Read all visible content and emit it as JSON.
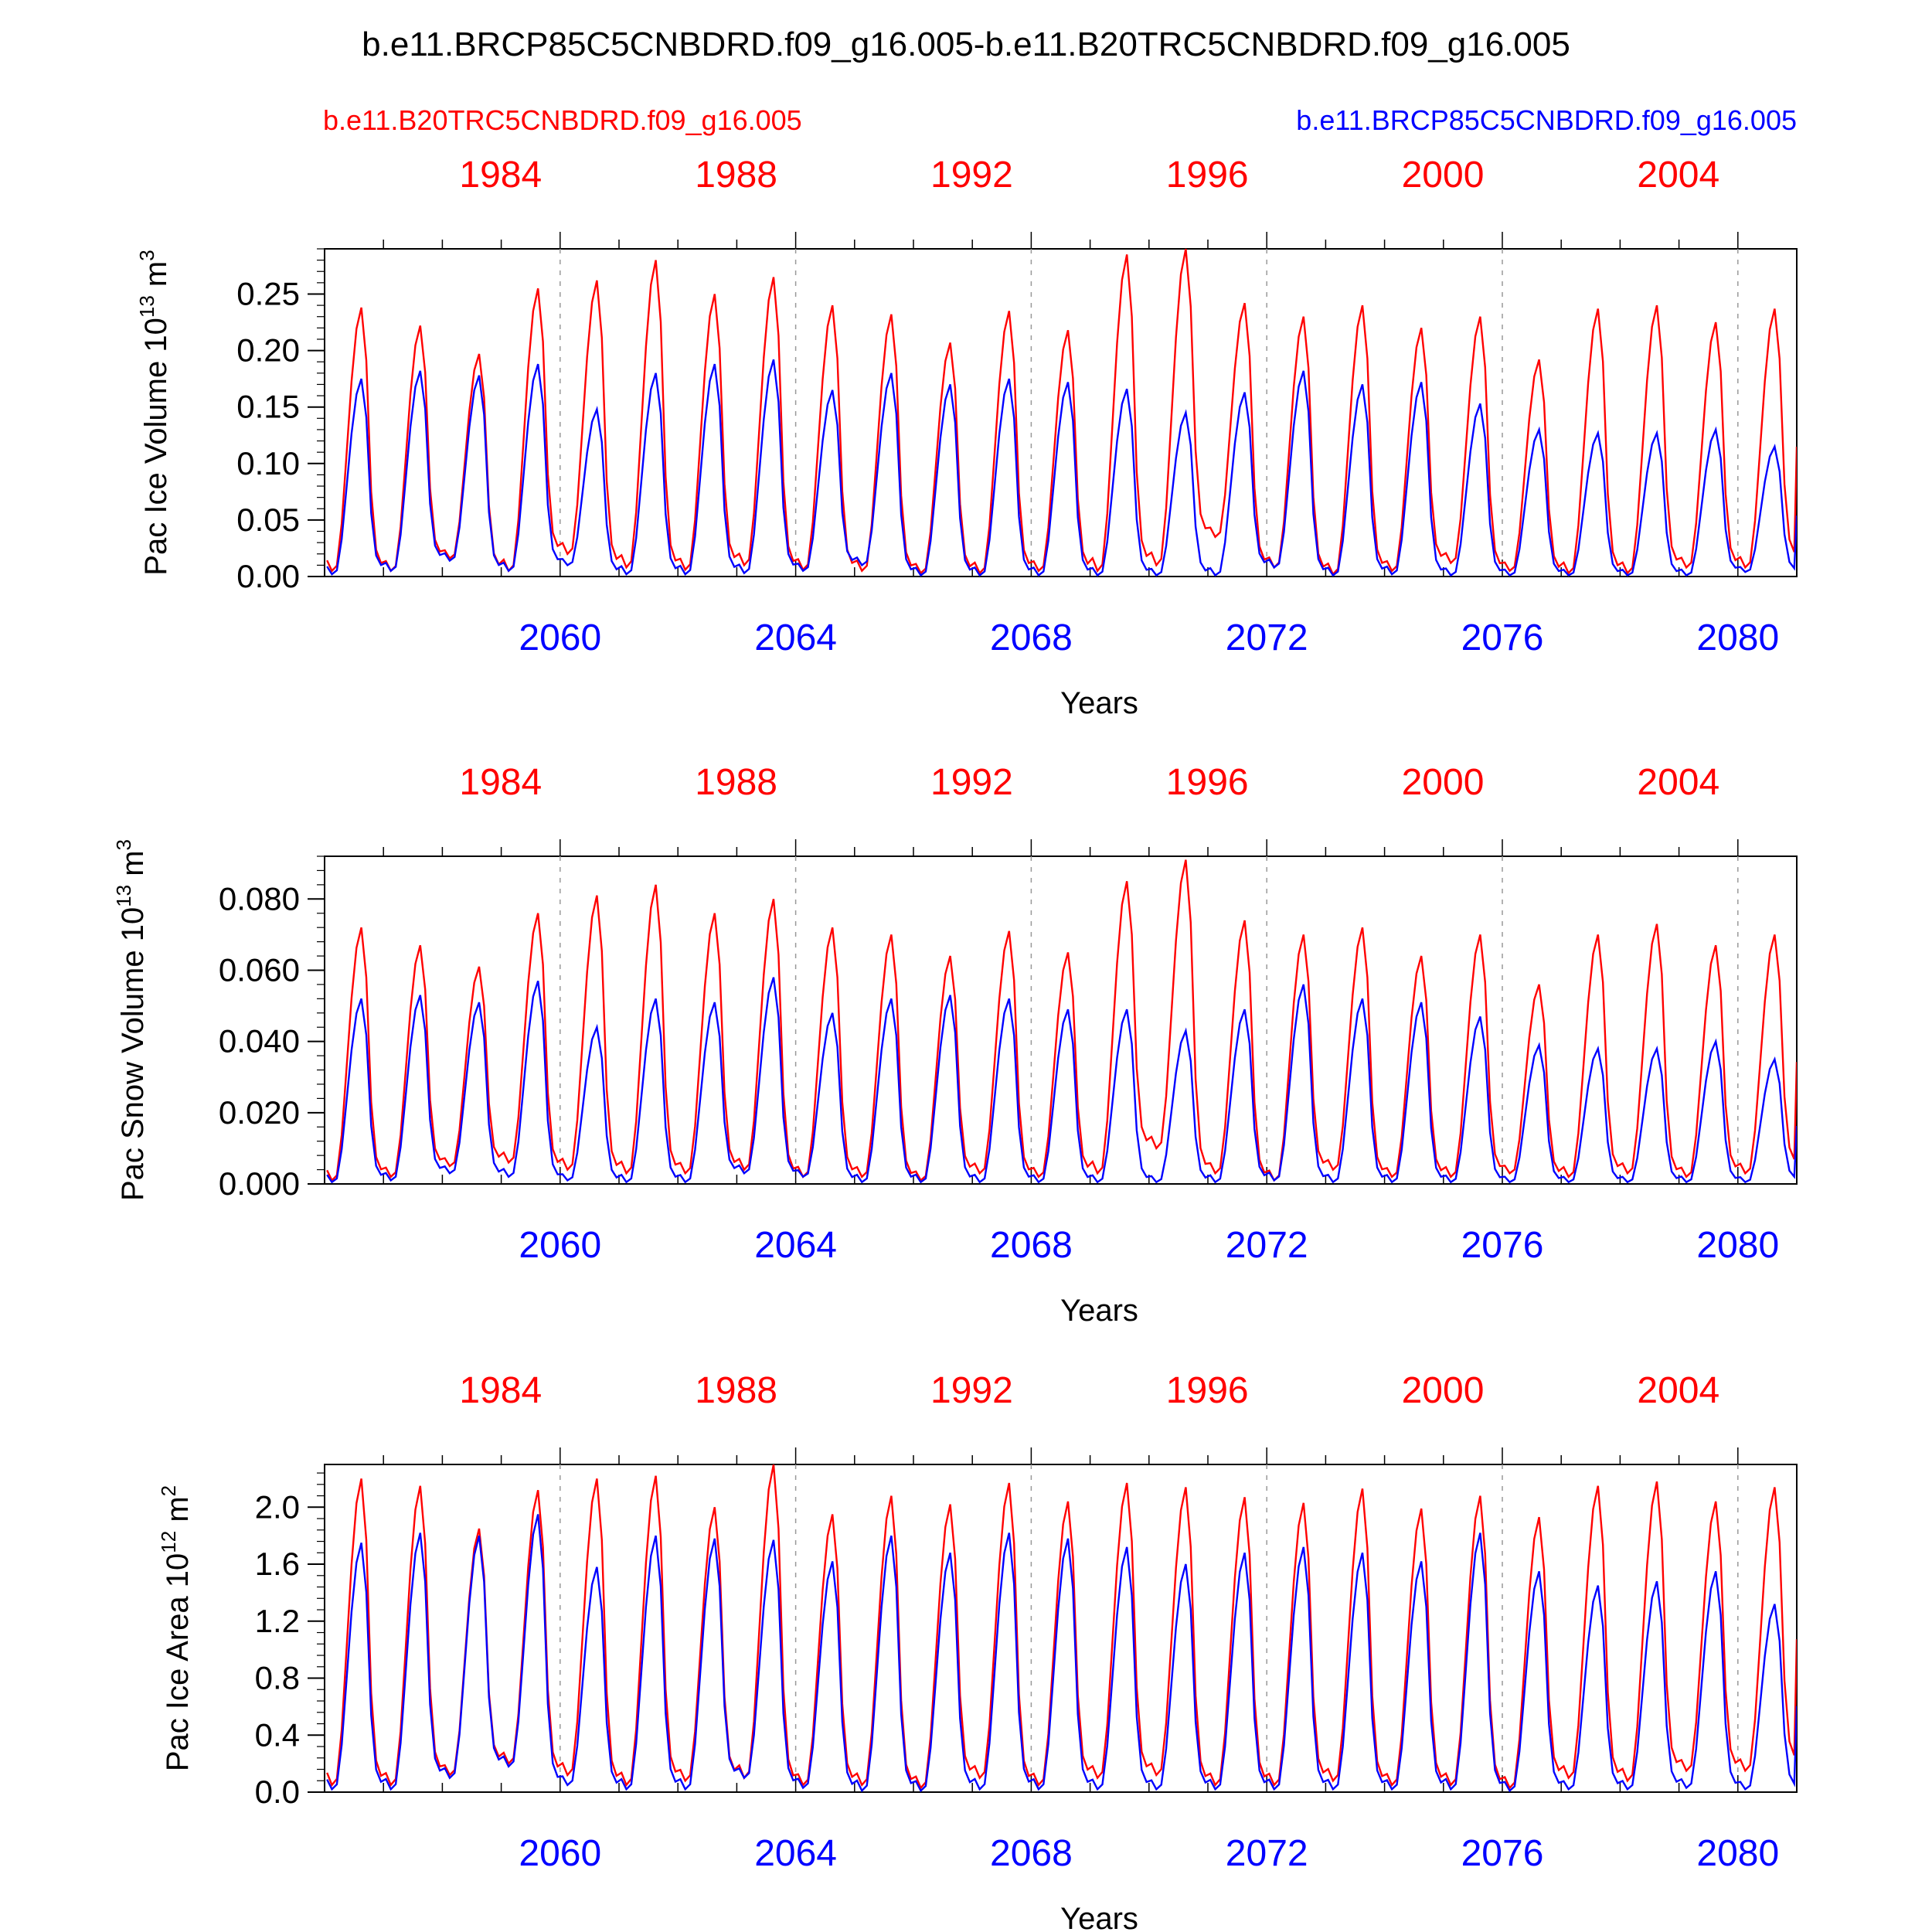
{
  "title": "b.e11.BRCP85C5CNBDRD.f09_g16.005-b.e11.B20TRC5CNBDRD.f09_g16.005",
  "legend": {
    "left_label": "b.e11.B20TRC5CNBDRD.f09_g16.005",
    "right_label": "b.e11.BRCP85C5CNBDRD.f09_g16.005"
  },
  "colors": {
    "reference": "#ff0000",
    "scenario": "#0000ff",
    "axis": "#000000",
    "gridline": "#999999"
  },
  "top_axis_labels": [
    "1984",
    "1988",
    "1992",
    "1996",
    "2000",
    "2004"
  ],
  "bottom_axis_labels": [
    "2060",
    "2064",
    "2068",
    "2072",
    "2076",
    "2080"
  ],
  "chart_data": [
    {
      "type": "line",
      "panel": "ice-volume",
      "ylabel": "Pac Ice Volume",
      "units_power": "13",
      "units_base": "m",
      "units_exp": "3",
      "xlabel": "Years",
      "x_bottom_range": [
        2056,
        2081
      ],
      "x_top_range": [
        1980,
        2005
      ],
      "ylim": [
        0,
        0.29
      ],
      "yticks": [
        "0.00",
        "0.05",
        "0.10",
        "0.15",
        "0.20",
        "0.25"
      ],
      "ytick_values": [
        0.0,
        0.05,
        0.1,
        0.15,
        0.2,
        0.25
      ],
      "series": [
        {
          "name": "b.e11.B20TRC5CNBDRD.f09_g16.005",
          "color": "red",
          "annual_min": [
            0.005,
            0.005,
            0.016,
            0.005,
            0.02,
            0.008,
            0.006,
            0.01,
            0.006,
            0.005,
            0.003,
            0.003,
            0.005,
            0.005,
            0.01,
            0.035,
            0.008,
            0.002,
            0.005,
            0.012,
            0.005,
            0.003,
            0.003,
            0.008,
            0.008,
            0.015
          ],
          "annual_max": [
            0.238,
            0.222,
            0.197,
            0.255,
            0.262,
            0.28,
            0.25,
            0.265,
            0.24,
            0.232,
            0.207,
            0.235,
            0.218,
            0.285,
            0.29,
            0.242,
            0.23,
            0.24,
            0.22,
            0.23,
            0.192,
            0.237,
            0.24,
            0.225,
            0.237
          ]
        },
        {
          "name": "b.e11.BRCP85C5CNBDRD.f09_g16.005",
          "color": "blue",
          "annual_min": [
            0.002,
            0.005,
            0.014,
            0.005,
            0.01,
            0.002,
            0.002,
            0.003,
            0.005,
            0.01,
            0.001,
            0.001,
            0.001,
            0.001,
            0.001,
            0.001,
            0.008,
            0.001,
            0.002,
            0.001,
            0.001,
            0.001,
            0.001,
            0.001,
            0.004,
            0.004
          ],
          "annual_max": [
            0.175,
            0.182,
            0.178,
            0.188,
            0.148,
            0.18,
            0.188,
            0.192,
            0.165,
            0.18,
            0.17,
            0.175,
            0.172,
            0.166,
            0.145,
            0.163,
            0.182,
            0.17,
            0.172,
            0.153,
            0.13,
            0.127,
            0.127,
            0.13,
            0.115
          ]
        }
      ]
    },
    {
      "type": "line",
      "panel": "snow-volume",
      "ylabel": "Pac Snow Volume",
      "units_power": "13",
      "units_base": "m",
      "units_exp": "3",
      "xlabel": "Years",
      "x_bottom_range": [
        2056,
        2081
      ],
      "x_top_range": [
        1980,
        2005
      ],
      "ylim": [
        0,
        0.092
      ],
      "yticks": [
        "0.000",
        "0.020",
        "0.040",
        "0.060",
        "0.080"
      ],
      "ytick_values": [
        0.0,
        0.02,
        0.04,
        0.06,
        0.08
      ],
      "series": [
        {
          "name": "b.e11.B20TRC5CNBDRD.f09_g16.005",
          "color": "red",
          "annual_min": [
            0.001,
            0.002,
            0.005,
            0.006,
            0.004,
            0.003,
            0.003,
            0.004,
            0.002,
            0.002,
            0.001,
            0.003,
            0.002,
            0.003,
            0.01,
            0.003,
            0.001,
            0.004,
            0.002,
            0.002,
            0.003,
            0.002,
            0.003,
            0.002,
            0.003,
            0.005
          ],
          "annual_max": [
            0.072,
            0.067,
            0.061,
            0.076,
            0.081,
            0.084,
            0.076,
            0.08,
            0.072,
            0.07,
            0.064,
            0.071,
            0.065,
            0.085,
            0.091,
            0.074,
            0.07,
            0.072,
            0.064,
            0.07,
            0.056,
            0.07,
            0.073,
            0.067,
            0.07
          ]
        },
        {
          "name": "b.e11.BRCP85C5CNBDRD.f09_g16.005",
          "color": "blue",
          "annual_min": [
            0.0005,
            0.001,
            0.003,
            0.002,
            0.001,
            0.0005,
            0.0005,
            0.003,
            0.002,
            0.0005,
            0.0005,
            0.0005,
            0.0005,
            0.0005,
            0.0005,
            0.0005,
            0.001,
            0.0005,
            0.0005,
            0.0005,
            0.0005,
            0.0005,
            0.0005,
            0.0005,
            0.0005,
            0.001
          ],
          "annual_max": [
            0.052,
            0.053,
            0.051,
            0.057,
            0.044,
            0.052,
            0.051,
            0.058,
            0.048,
            0.052,
            0.053,
            0.052,
            0.049,
            0.049,
            0.043,
            0.049,
            0.056,
            0.052,
            0.051,
            0.047,
            0.039,
            0.038,
            0.038,
            0.04,
            0.035
          ]
        }
      ]
    },
    {
      "type": "line",
      "panel": "ice-area",
      "ylabel": "Pac Ice Area",
      "units_power": "12",
      "units_base": "m",
      "units_exp": "2",
      "xlabel": "Years",
      "x_bottom_range": [
        2056,
        2081
      ],
      "x_top_range": [
        1980,
        2005
      ],
      "ylim": [
        0,
        2.3
      ],
      "yticks": [
        "0.0",
        "0.4",
        "0.8",
        "1.2",
        "1.6",
        "2.0"
      ],
      "ytick_values": [
        0.0,
        0.4,
        0.8,
        1.2,
        1.6,
        2.0
      ],
      "series": [
        {
          "name": "b.e11.B20TRC5CNBDRD.f09_g16.005",
          "color": "red",
          "annual_min": [
            0.05,
            0.05,
            0.12,
            0.2,
            0.12,
            0.05,
            0.08,
            0.1,
            0.05,
            0.05,
            0.03,
            0.1,
            0.05,
            0.1,
            0.12,
            0.05,
            0.05,
            0.08,
            0.05,
            0.05,
            0.03,
            0.1,
            0.08,
            0.15,
            0.15,
            0.2
          ],
          "annual_max": [
            2.2,
            2.15,
            1.85,
            2.12,
            2.2,
            2.22,
            2.0,
            2.3,
            1.95,
            2.08,
            2.02,
            2.17,
            2.04,
            2.17,
            2.14,
            2.07,
            2.03,
            2.13,
            1.99,
            2.08,
            1.93,
            2.15,
            2.18,
            2.04,
            2.14
          ]
        },
        {
          "name": "b.e11.BRCP85C5CNBDRD.f09_g16.005",
          "color": "blue",
          "annual_min": [
            0.02,
            0.02,
            0.1,
            0.18,
            0.05,
            0.02,
            0.02,
            0.1,
            0.03,
            0.01,
            0.01,
            0.02,
            0.02,
            0.02,
            0.02,
            0.02,
            0.02,
            0.02,
            0.02,
            0.02,
            0.01,
            0.02,
            0.02,
            0.03,
            0.02,
            0.02
          ],
          "annual_max": [
            1.75,
            1.82,
            1.8,
            1.95,
            1.58,
            1.8,
            1.78,
            1.77,
            1.62,
            1.8,
            1.68,
            1.82,
            1.78,
            1.72,
            1.6,
            1.68,
            1.72,
            1.68,
            1.62,
            1.82,
            1.55,
            1.45,
            1.48,
            1.55,
            1.32
          ]
        }
      ]
    }
  ]
}
